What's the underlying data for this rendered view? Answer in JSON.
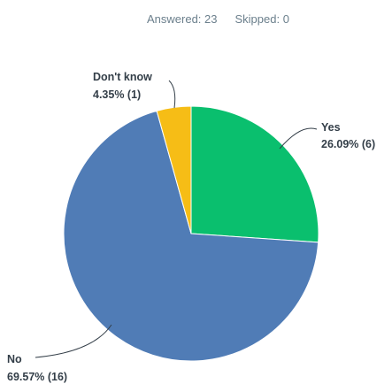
{
  "summary": {
    "answered": "Answered: 23",
    "skipped": "Skipped: 0"
  },
  "chart_data": {
    "type": "pie",
    "categories": [
      "Yes",
      "No",
      "Don't know"
    ],
    "values": [
      26.09,
      69.57,
      4.35
    ],
    "counts": [
      6,
      16,
      1
    ],
    "slice_labels": [
      "26.09% (6)",
      "69.57% (16)",
      "4.35% (1)"
    ],
    "colors": [
      "#0abf6e",
      "#507cb6",
      "#f6bd16"
    ],
    "start_angle_deg": 0,
    "direction": "clockwise",
    "legend": "none"
  }
}
